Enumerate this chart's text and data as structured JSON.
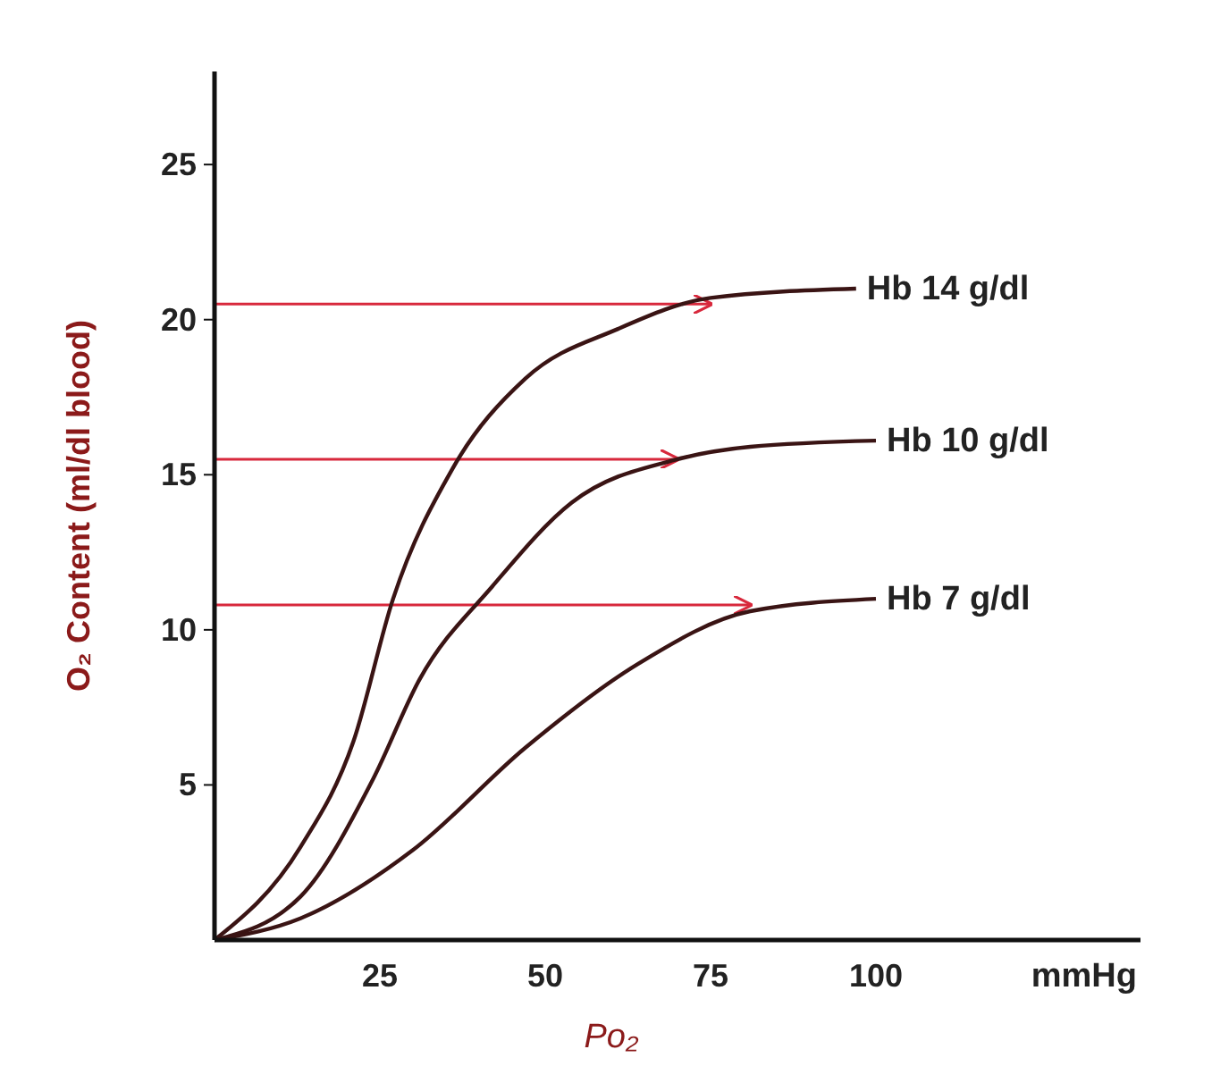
{
  "chart_data": {
    "type": "line",
    "xlabel": "Po₂",
    "ylabel": "O₂ Content (ml/dl blood)",
    "xlim": [
      0,
      140
    ],
    "xticks": [
      25,
      50,
      75,
      100
    ],
    "ylim": [
      0,
      28
    ],
    "yticks": [
      5,
      10,
      15,
      20,
      25
    ],
    "marker": "none",
    "line_style": "solid",
    "series": [
      {
        "name": "Hb 14 g/dl",
        "color": "#3a1414",
        "x": [
          0,
          13,
          21,
          27,
          36,
          47,
          61,
          75,
          97
        ],
        "values": [
          0,
          3,
          6.4,
          11,
          15.2,
          18.1,
          19.7,
          20.7,
          21
        ]
      },
      {
        "name": "Hb 10 g/dl",
        "color": "#3a1414",
        "x": [
          0,
          13,
          24,
          31,
          42,
          54,
          70,
          81,
          100
        ],
        "values": [
          0,
          1.4,
          5.2,
          8.4,
          11.4,
          14.1,
          15.5,
          15.9,
          16.1
        ]
      },
      {
        "name": "Hb 7 g/dl",
        "color": "#3a1414",
        "x": [
          0,
          13,
          30,
          47,
          64,
          81,
          100
        ],
        "values": [
          0,
          0.7,
          2.9,
          6.2,
          8.9,
          10.6,
          11
        ]
      }
    ],
    "ref_lines": [
      {
        "axis": "y",
        "value": 20.5,
        "color": "#d8283c"
      },
      {
        "axis": "y",
        "value": 15.5,
        "color": "#d8283c"
      },
      {
        "axis": "y",
        "value": 10.8,
        "color": "#d8283c"
      }
    ],
    "annotations": [
      "mmHg"
    ]
  }
}
